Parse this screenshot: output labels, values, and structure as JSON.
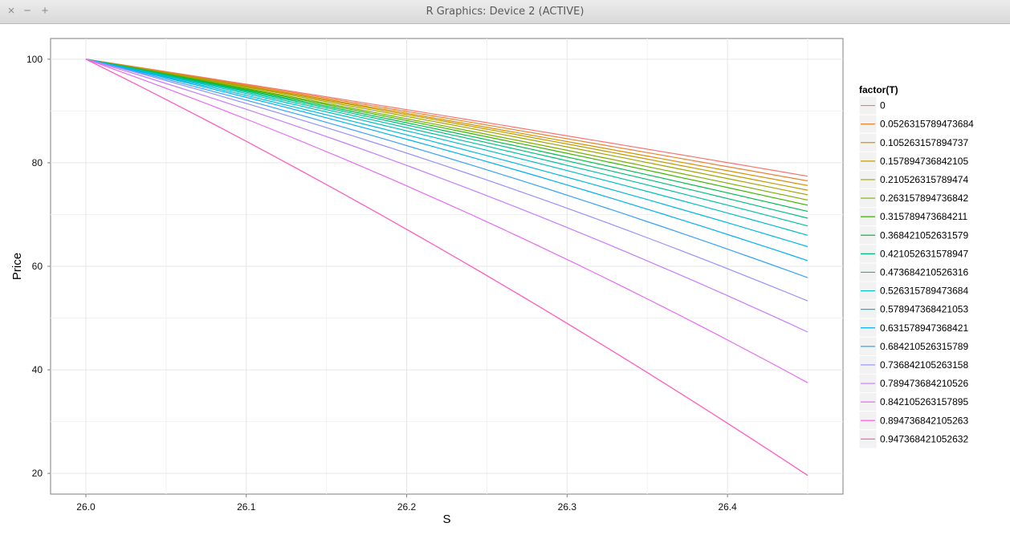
{
  "window": {
    "title": "R Graphics: Device 2 (ACTIVE)",
    "close_icon": "×",
    "minimize_icon": "−",
    "maximize_icon": "+"
  },
  "chart_data": {
    "type": "line",
    "xlabel": "S",
    "ylabel": "Price",
    "xlim": [
      25.978,
      26.472
    ],
    "ylim": [
      16.0,
      104.0
    ],
    "xticks": [
      26.0,
      26.1,
      26.2,
      26.3,
      26.4
    ],
    "xtick_labels": [
      "26.0",
      "26.1",
      "26.2",
      "26.3",
      "26.4"
    ],
    "yticks": [
      20,
      40,
      60,
      80,
      100
    ],
    "ytick_labels": [
      "20",
      "40",
      "60",
      "80",
      "100"
    ],
    "grid": true,
    "legend": {
      "title": "factor(T)",
      "position": "right"
    },
    "x": [
      26.0,
      26.225,
      26.45
    ],
    "series": [
      {
        "name": "0",
        "color": "#F8766D",
        "values": [
          100,
          89.0,
          77.4
        ]
      },
      {
        "name": "0.0526315789473684",
        "color": "#EA8331",
        "values": [
          100,
          88.6,
          76.5
        ]
      },
      {
        "name": "0.105263157894737",
        "color": "#D89000",
        "values": [
          100,
          88.2,
          75.6
        ]
      },
      {
        "name": "0.157894736842105",
        "color": "#C09B00",
        "values": [
          100,
          87.9,
          74.7
        ]
      },
      {
        "name": "0.210526315789474",
        "color": "#A3A500",
        "values": [
          100,
          87.5,
          73.8
        ]
      },
      {
        "name": "0.263157894736842",
        "color": "#7CAE00",
        "values": [
          100,
          87.0,
          72.8
        ]
      },
      {
        "name": "0.315789473684211",
        "color": "#39B600",
        "values": [
          100,
          86.6,
          71.8
        ]
      },
      {
        "name": "0.368421052631579",
        "color": "#00BB4E",
        "values": [
          100,
          86.1,
          70.6
        ]
      },
      {
        "name": "0.421052631578947",
        "color": "#00BF7D",
        "values": [
          100,
          85.6,
          69.3
        ]
      },
      {
        "name": "0.473684210526316",
        "color": "#00C1A3",
        "values": [
          100,
          85.0,
          67.8
        ]
      },
      {
        "name": "0.526315789473684",
        "color": "#00BFC4",
        "values": [
          100,
          84.3,
          66.0
        ]
      },
      {
        "name": "0.578947368421053",
        "color": "#00BAE0",
        "values": [
          100,
          83.4,
          63.8
        ]
      },
      {
        "name": "0.631578947368421",
        "color": "#00B0F6",
        "values": [
          100,
          82.4,
          61.1
        ]
      },
      {
        "name": "0.684210526315789",
        "color": "#35A2FF",
        "values": [
          100,
          81.0,
          57.8
        ]
      },
      {
        "name": "0.736842105263158",
        "color": "#9590FF",
        "values": [
          100,
          79.3,
          53.3
        ]
      },
      {
        "name": "0.789473684210526",
        "color": "#C77CFF",
        "values": [
          100,
          76.6,
          47.3
        ]
      },
      {
        "name": "0.842105263157895",
        "color": "#E76BF3",
        "values": [
          100,
          72.1,
          37.5
        ]
      },
      {
        "name": "0.894736842105263",
        "color": "#FA62DB",
        "values": [
          100,
          62.7,
          19.6
        ]
      },
      {
        "name": "0.947368421052632",
        "color": "#FF62BC",
        "values": [
          100,
          62.7,
          19.6
        ]
      }
    ]
  }
}
